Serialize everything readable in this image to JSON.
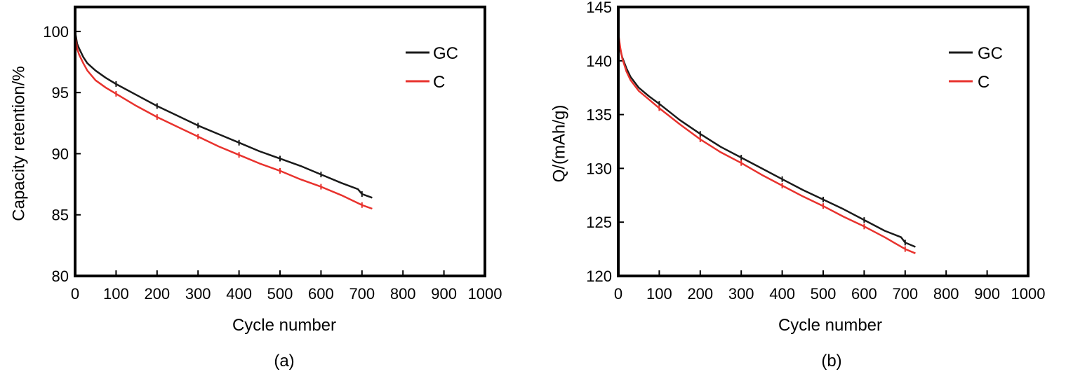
{
  "chart_data": [
    {
      "type": "line",
      "caption": "(a)",
      "xlabel": "Cycle number",
      "ylabel": "Capacity retention/%",
      "xlim": [
        0,
        1000
      ],
      "ylim": [
        80,
        102
      ],
      "xticks": [
        0,
        100,
        200,
        300,
        400,
        500,
        600,
        700,
        800,
        900,
        1000
      ],
      "yticks": [
        80,
        85,
        90,
        95,
        100
      ],
      "legend_position": "top-right",
      "grid": false,
      "series": [
        {
          "name": "GC",
          "color": "#1a1a1a",
          "x": [
            0,
            5,
            10,
            20,
            30,
            50,
            75,
            100,
            150,
            200,
            250,
            300,
            350,
            400,
            450,
            500,
            550,
            600,
            650,
            690,
            700,
            725
          ],
          "y": [
            100,
            99.0,
            98.6,
            97.9,
            97.4,
            96.8,
            96.2,
            95.7,
            94.8,
            93.9,
            93.1,
            92.3,
            91.6,
            90.9,
            90.2,
            89.6,
            89.0,
            88.3,
            87.6,
            87.1,
            86.7,
            86.4
          ]
        },
        {
          "name": "C",
          "color": "#e8322d",
          "x": [
            0,
            5,
            10,
            20,
            30,
            50,
            75,
            100,
            150,
            200,
            250,
            300,
            350,
            400,
            450,
            500,
            550,
            600,
            650,
            700,
            725
          ],
          "y": [
            99.8,
            98.6,
            98.1,
            97.4,
            96.8,
            96.0,
            95.4,
            94.9,
            93.9,
            93.0,
            92.2,
            91.4,
            90.6,
            89.9,
            89.2,
            88.6,
            87.9,
            87.3,
            86.6,
            85.8,
            85.5
          ]
        }
      ]
    },
    {
      "type": "line",
      "caption": "(b)",
      "xlabel": "Cycle number",
      "ylabel": "Q/(mAh/g)",
      "xlim": [
        0,
        1000
      ],
      "ylim": [
        120,
        145
      ],
      "xticks": [
        0,
        100,
        200,
        300,
        400,
        500,
        600,
        700,
        800,
        900,
        1000
      ],
      "yticks": [
        120,
        125,
        130,
        135,
        140,
        145
      ],
      "legend_position": "top-right",
      "grid": false,
      "series": [
        {
          "name": "GC",
          "color": "#1a1a1a",
          "x": [
            0,
            5,
            10,
            20,
            30,
            50,
            75,
            100,
            150,
            200,
            250,
            300,
            350,
            400,
            450,
            500,
            550,
            600,
            650,
            690,
            700,
            725
          ],
          "y": [
            142.3,
            141.0,
            140.3,
            139.3,
            138.5,
            137.5,
            136.7,
            136.0,
            134.5,
            133.2,
            132.0,
            131.0,
            130.0,
            129.0,
            128.0,
            127.1,
            126.2,
            125.2,
            124.2,
            123.6,
            123.1,
            122.7
          ]
        },
        {
          "name": "C",
          "color": "#e8322d",
          "x": [
            0,
            5,
            10,
            20,
            30,
            50,
            75,
            100,
            150,
            200,
            250,
            300,
            350,
            400,
            450,
            500,
            550,
            600,
            650,
            700,
            725
          ],
          "y": [
            142.6,
            141.2,
            140.2,
            139.0,
            138.2,
            137.2,
            136.4,
            135.6,
            134.1,
            132.7,
            131.5,
            130.5,
            129.4,
            128.4,
            127.4,
            126.5,
            125.5,
            124.6,
            123.6,
            122.5,
            122.1
          ]
        }
      ]
    }
  ]
}
